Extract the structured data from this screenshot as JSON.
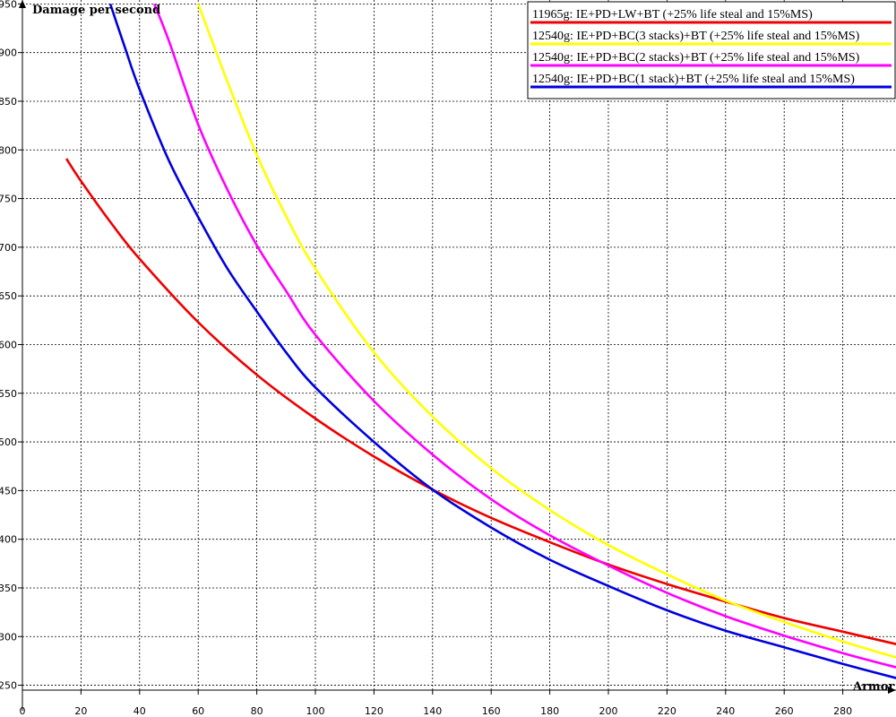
{
  "chart_data": {
    "type": "line",
    "title": "",
    "xlabel": "Armor",
    "ylabel": "Damage per second",
    "xlim": [
      0,
      300
    ],
    "ylim": [
      245,
      955
    ],
    "x_ticks": [
      0,
      20,
      40,
      60,
      80,
      100,
      120,
      140,
      160,
      180,
      200,
      220,
      240,
      260,
      280
    ],
    "y_ticks": [
      250,
      300,
      350,
      400,
      450,
      500,
      550,
      600,
      650,
      700,
      750,
      800,
      850,
      900,
      950
    ],
    "grid": true,
    "legend_position": "top-right",
    "series": [
      {
        "name": "11965g: IE+PD+LW+BT (+25% life steal and 15%MS)",
        "color": "#ee0000",
        "x": [
          15,
          20,
          30,
          40,
          60,
          80,
          100,
          120,
          140,
          160,
          180,
          200,
          220,
          240,
          260,
          280,
          300
        ],
        "y": [
          791,
          768,
          726,
          688,
          623,
          569,
          524,
          485,
          451,
          422,
          397,
          374,
          354,
          336,
          319,
          305,
          291
        ]
      },
      {
        "name": "12540g: IE+PD+BC(3 stacks)+BT (+25% life steal and 15%MS)",
        "color": "#ffff00",
        "x": [
          60,
          70,
          80,
          90,
          100,
          120,
          140,
          160,
          180,
          200,
          220,
          240,
          260,
          280,
          300
        ],
        "y": [
          950,
          870,
          795,
          732,
          678,
          592,
          526,
          473,
          430,
          394,
          364,
          337,
          315,
          295,
          277
        ]
      },
      {
        "name": "12540g: IE+PD+BC(2 stacks)+BT (+25% life steal and 15%MS)",
        "color": "#ff00ff",
        "x": [
          45,
          50,
          60,
          70,
          80,
          90,
          100,
          120,
          140,
          160,
          180,
          200,
          220,
          240,
          260,
          280,
          300
        ],
        "y": [
          950,
          912,
          826,
          759,
          702,
          655,
          610,
          542,
          487,
          441,
          404,
          373,
          345,
          321,
          301,
          283,
          267
        ]
      },
      {
        "name": "12540g: IE+PD+BC(1 stack)+BT (+25% life steal and 15%MS)",
        "color": "#0000dd",
        "x": [
          30,
          35,
          40,
          50,
          60,
          70,
          80,
          90,
          100,
          120,
          140,
          160,
          180,
          200,
          220,
          240,
          260,
          280,
          300
        ],
        "y": [
          950,
          905,
          862,
          789,
          731,
          678,
          634,
          592,
          556,
          500,
          451,
          412,
          379,
          352,
          327,
          306,
          289,
          272,
          256
        ]
      }
    ]
  }
}
